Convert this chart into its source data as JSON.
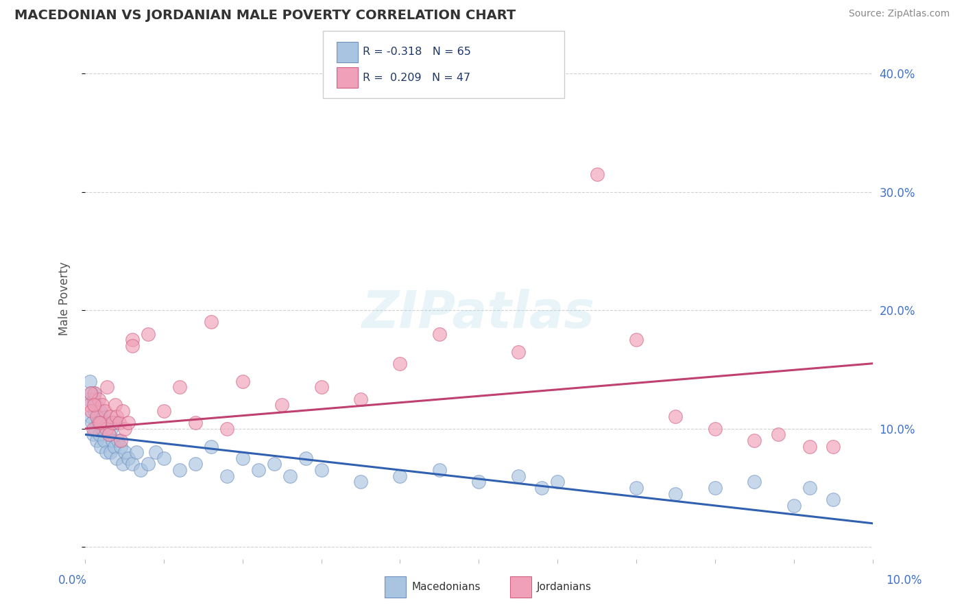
{
  "title": "MACEDONIAN VS JORDANIAN MALE POVERTY CORRELATION CHART",
  "source": "Source: ZipAtlas.com",
  "ylabel": "Male Poverty",
  "xlim": [
    0.0,
    10.0
  ],
  "ylim": [
    -1.0,
    43.0
  ],
  "yticks": [
    0.0,
    10.0,
    20.0,
    30.0,
    40.0
  ],
  "ytick_labels": [
    "",
    "10.0%",
    "20.0%",
    "30.0%",
    "40.0%"
  ],
  "macedonian_color": "#A8C4E0",
  "macedonian_edge": "#7090C0",
  "jordanian_color": "#F0A0B8",
  "jordanian_edge": "#D06080",
  "trend_mac_color": "#3060B0",
  "trend_jor_color": "#C04070",
  "legend_R_mac": "R = -0.318",
  "legend_N_mac": "N = 65",
  "legend_R_jor": "R =  0.209",
  "legend_N_jor": "N = 47",
  "background_color": "#FFFFFF",
  "grid_color": "#CCCCCC",
  "watermark": "ZIPatlas",
  "mac_x": [
    0.05,
    0.07,
    0.09,
    0.1,
    0.11,
    0.12,
    0.13,
    0.14,
    0.15,
    0.16,
    0.17,
    0.18,
    0.2,
    0.22,
    0.24,
    0.25,
    0.27,
    0.28,
    0.3,
    0.32,
    0.33,
    0.35,
    0.37,
    0.38,
    0.4,
    0.42,
    0.45,
    0.48,
    0.5,
    0.55,
    0.6,
    0.65,
    0.7,
    0.8,
    0.9,
    1.0,
    1.2,
    1.4,
    1.6,
    1.8,
    2.0,
    2.2,
    2.4,
    2.6,
    2.8,
    3.0,
    3.5,
    4.0,
    4.5,
    5.0,
    5.5,
    5.8,
    6.0,
    7.0,
    7.5,
    8.0,
    8.5,
    9.0,
    9.2,
    9.5,
    0.06,
    0.08,
    0.11,
    0.19,
    0.23
  ],
  "mac_y": [
    12.5,
    11.0,
    10.5,
    9.5,
    13.0,
    11.5,
    10.0,
    12.0,
    9.0,
    10.5,
    11.0,
    9.5,
    8.5,
    10.0,
    9.0,
    11.0,
    8.0,
    10.5,
    9.5,
    8.0,
    10.0,
    9.0,
    8.5,
    10.5,
    7.5,
    9.0,
    8.5,
    7.0,
    8.0,
    7.5,
    7.0,
    8.0,
    6.5,
    7.0,
    8.0,
    7.5,
    6.5,
    7.0,
    8.5,
    6.0,
    7.5,
    6.5,
    7.0,
    6.0,
    7.5,
    6.5,
    5.5,
    6.0,
    6.5,
    5.5,
    6.0,
    5.0,
    5.5,
    5.0,
    4.5,
    5.0,
    5.5,
    3.5,
    5.0,
    4.0,
    14.0,
    13.0,
    12.5,
    11.5,
    10.5
  ],
  "jor_x": [
    0.05,
    0.08,
    0.1,
    0.12,
    0.15,
    0.17,
    0.2,
    0.22,
    0.25,
    0.27,
    0.3,
    0.32,
    0.35,
    0.38,
    0.4,
    0.43,
    0.45,
    0.48,
    0.5,
    0.55,
    0.6,
    0.8,
    1.0,
    1.2,
    1.4,
    1.6,
    1.8,
    2.0,
    2.5,
    3.0,
    3.5,
    4.0,
    4.5,
    5.5,
    6.5,
    7.0,
    7.5,
    8.0,
    8.5,
    8.8,
    9.2,
    9.5,
    0.07,
    0.11,
    0.18,
    0.28,
    0.6
  ],
  "jor_y": [
    12.0,
    11.5,
    10.0,
    13.0,
    11.0,
    12.5,
    10.5,
    12.0,
    11.5,
    10.0,
    9.5,
    11.0,
    10.5,
    12.0,
    11.0,
    10.5,
    9.0,
    11.5,
    10.0,
    10.5,
    17.5,
    18.0,
    11.5,
    13.5,
    10.5,
    19.0,
    10.0,
    14.0,
    12.0,
    13.5,
    12.5,
    15.5,
    18.0,
    16.5,
    31.5,
    17.5,
    11.0,
    10.0,
    9.0,
    9.5,
    8.5,
    8.5,
    13.0,
    12.0,
    10.5,
    13.5,
    17.0
  ]
}
